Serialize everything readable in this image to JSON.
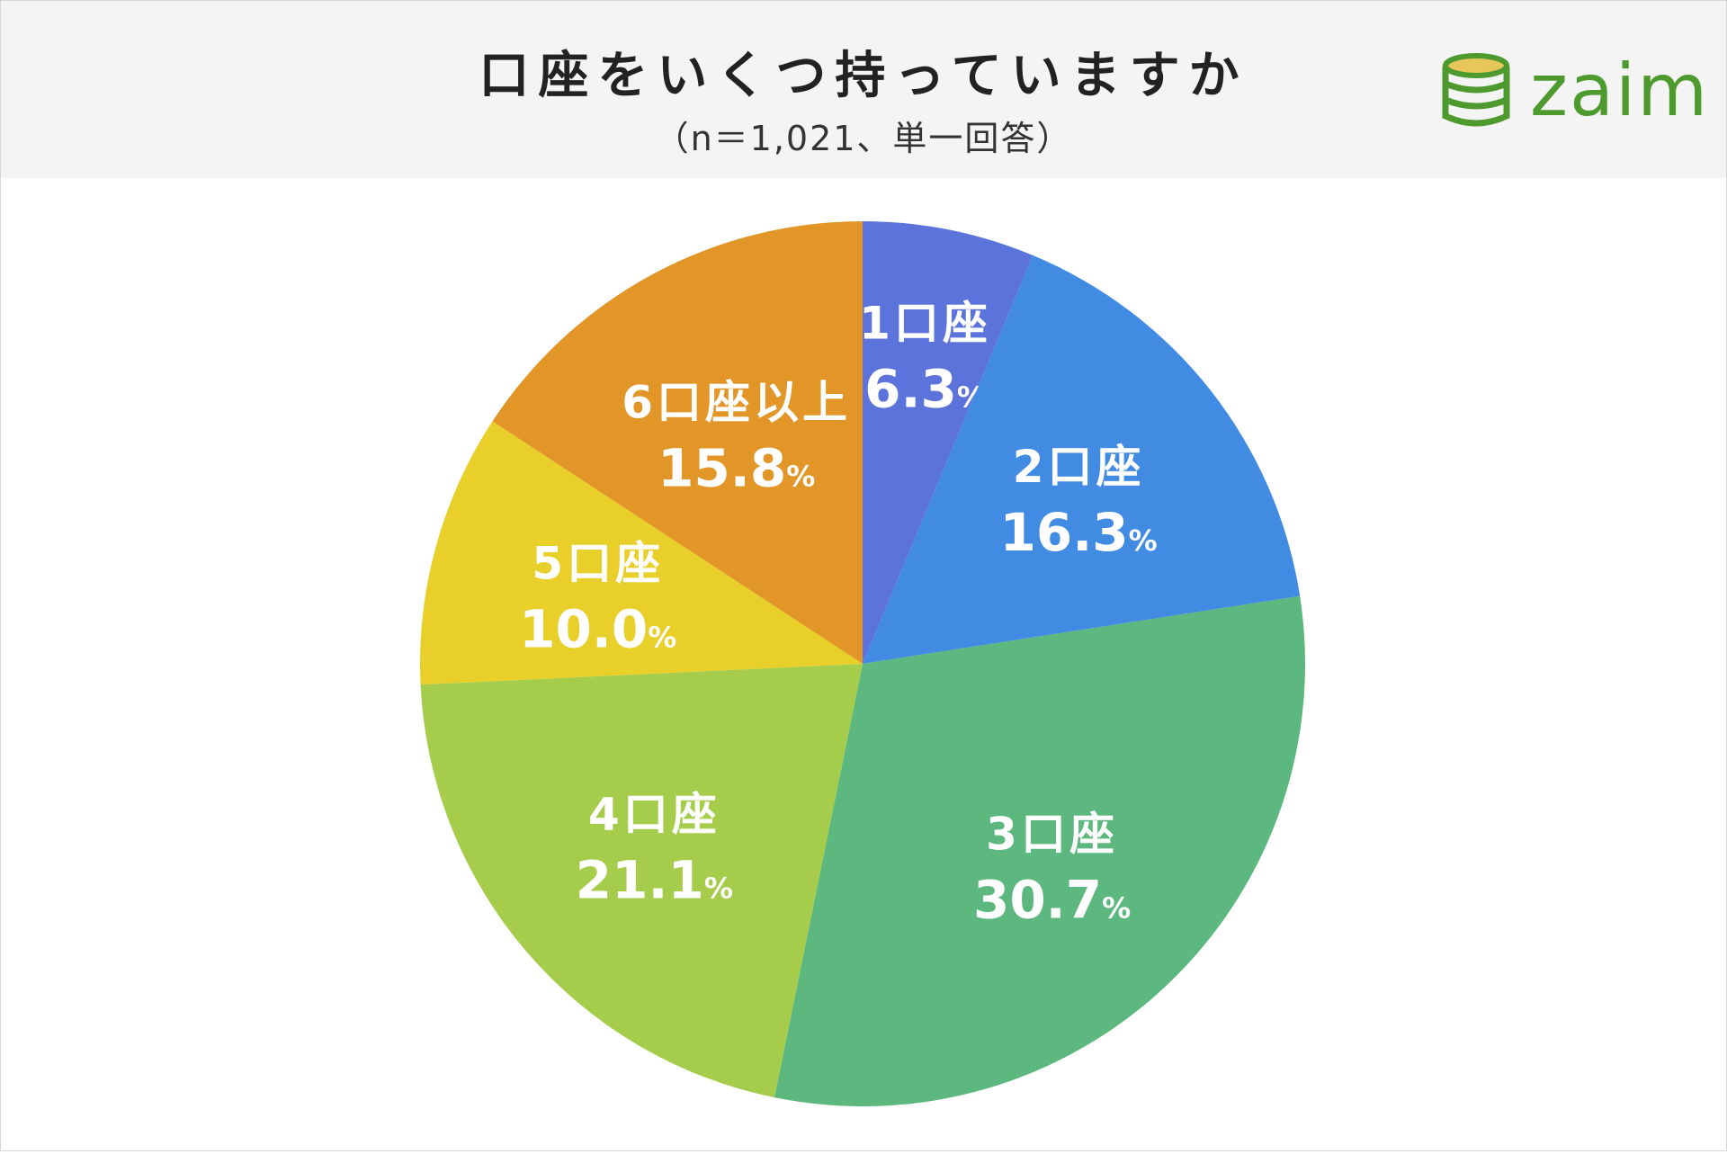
{
  "header": {
    "title": "口座をいくつ持っていますか",
    "subtitle": "（n＝1,021、単一回答）"
  },
  "logo": {
    "text": "zaim",
    "icon": "coin-stack-icon",
    "color": "#4e9a2f"
  },
  "chart_data": {
    "type": "pie",
    "title": "口座をいくつ持っていますか",
    "subtitle": "（n＝1,021、単一回答）",
    "start": "12 o'clock",
    "direction": "clockwise",
    "unit": "%",
    "slices": [
      {
        "label": "1口座",
        "value": 6.3,
        "value_text": "6.3",
        "color": "#5b73db"
      },
      {
        "label": "2口座",
        "value": 16.3,
        "value_text": "16.3",
        "color": "#428be3"
      },
      {
        "label": "3口座",
        "value": 30.7,
        "value_text": "30.7",
        "color": "#5cb87e"
      },
      {
        "label": "4口座",
        "value": 21.1,
        "value_text": "21.1",
        "color": "#a5cd4b"
      },
      {
        "label": "5口座",
        "value": 10.0,
        "value_text": "10.0",
        "color": "#e8cf2a"
      },
      {
        "label": "6口座以上",
        "value": 15.8,
        "value_text": "15.8",
        "color": "#e29628"
      }
    ]
  }
}
